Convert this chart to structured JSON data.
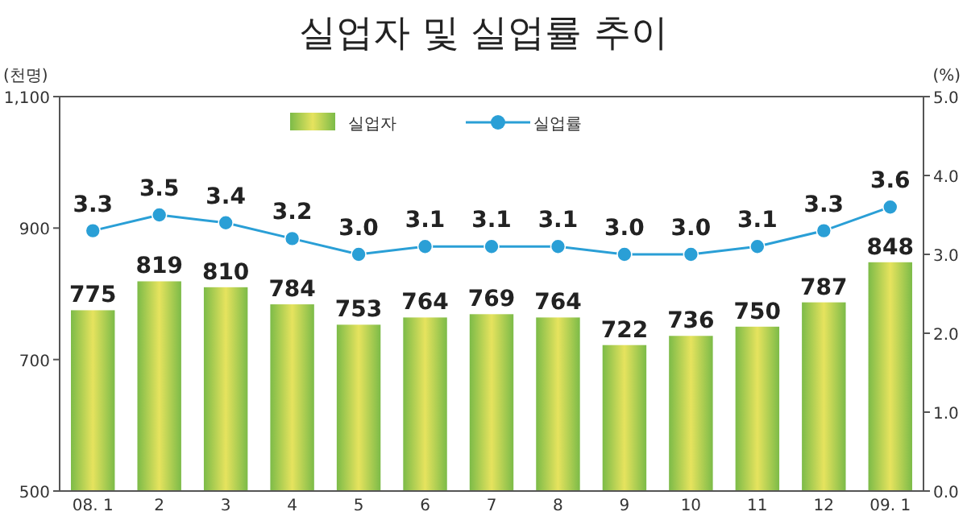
{
  "chart_data": {
    "type": "bar",
    "title": "실업자 및 실업률 추이",
    "ylabel": "(천명)",
    "y2label": "(%)",
    "categories": [
      "08. 1",
      "2",
      "3",
      "4",
      "5",
      "6",
      "7",
      "8",
      "9",
      "10",
      "11",
      "12",
      "09. 1"
    ],
    "series": [
      {
        "name": "실업자",
        "color": "#7cbb48",
        "values": [
          775,
          819,
          810,
          784,
          753,
          764,
          769,
          764,
          722,
          736,
          750,
          787,
          848
        ]
      },
      {
        "name": "실업률",
        "type": "line",
        "axis": "y2",
        "color": "#2a9fd6",
        "marker": "circle",
        "values": [
          3.3,
          3.5,
          3.4,
          3.2,
          3.0,
          3.1,
          3.1,
          3.1,
          3.0,
          3.0,
          3.1,
          3.3,
          3.6
        ],
        "value_labels": [
          "3.3",
          "3.5",
          "3.4",
          "3.2",
          "3.0",
          "3.1",
          "3.1",
          "3.1",
          "3.0",
          "3.0",
          "3.1",
          "3.3",
          "3.6"
        ]
      }
    ],
    "ylim": [
      500,
      1100
    ],
    "yticks": [
      500,
      700,
      900,
      {
        "value": 1100,
        "label": "1,100"
      }
    ],
    "y2lim": [
      0,
      5
    ],
    "y2ticks": [
      {
        "value": 0,
        "label": "0.0"
      },
      {
        "value": 1,
        "label": "1.0"
      },
      {
        "value": 2,
        "label": "2.0"
      },
      {
        "value": 3,
        "label": "3.0"
      },
      {
        "value": 4,
        "label": "4.0"
      },
      {
        "value": 5,
        "label": "5.0"
      }
    ],
    "data_labels": true,
    "legend": "top",
    "grid": false
  }
}
